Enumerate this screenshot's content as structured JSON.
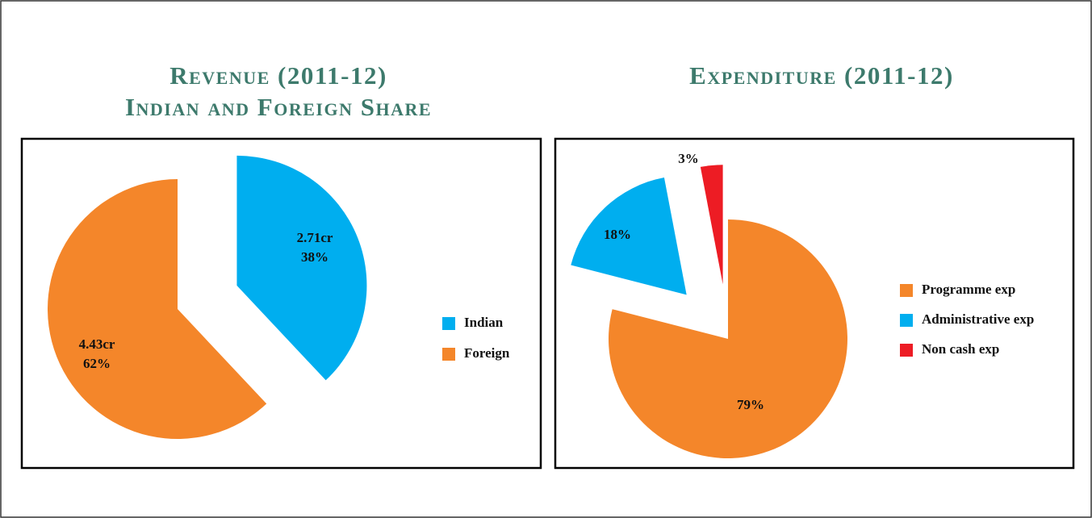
{
  "chart_data": [
    {
      "type": "pie",
      "title": "Revenue (2011-12)",
      "subtitle": "Indian and Foreign Share",
      "categories": [
        "Indian",
        "Foreign"
      ],
      "values": [
        38,
        62
      ],
      "value_labels": [
        "38%",
        "62%"
      ],
      "amount_labels": [
        "2.71cr",
        "4.43cr"
      ],
      "colors": [
        "#00aeef",
        "#f4862a"
      ],
      "legend": "right"
    },
    {
      "type": "pie",
      "title": "Expenditure (2011-12)",
      "categories": [
        "Programme exp",
        "Administrative exp",
        "Non cash exp"
      ],
      "values": [
        79,
        18,
        3
      ],
      "value_labels": [
        "79%",
        "18%",
        "3%"
      ],
      "colors": [
        "#f4862a",
        "#00aeef",
        "#ed1c24"
      ],
      "legend": "right"
    }
  ]
}
